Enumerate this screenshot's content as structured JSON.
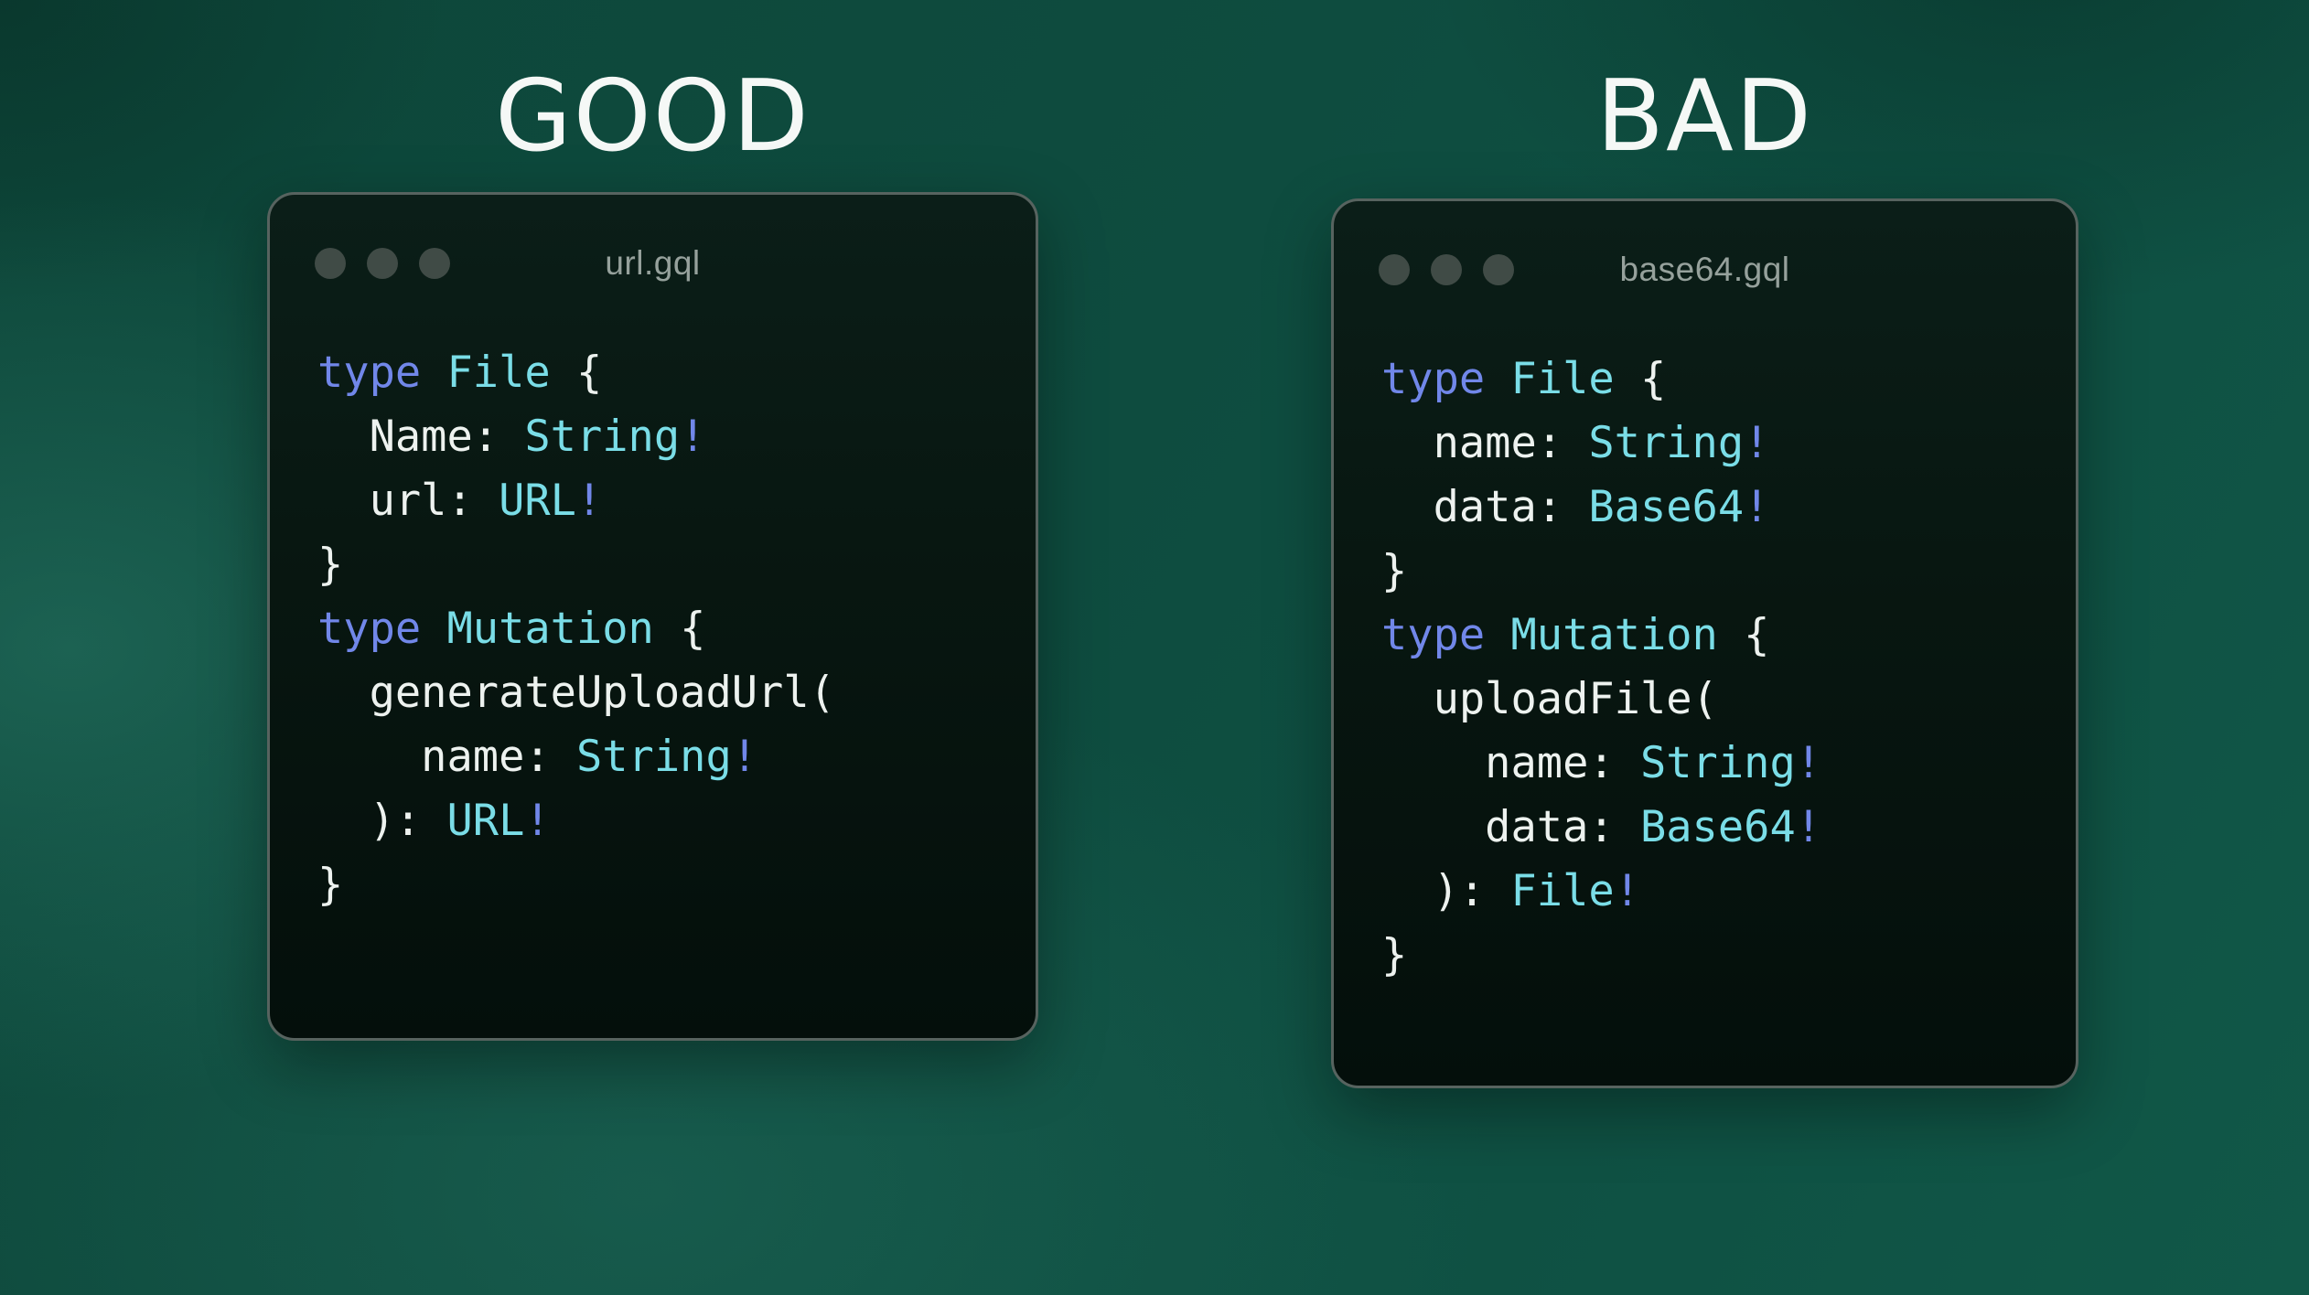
{
  "panels": [
    {
      "heading": "GOOD",
      "window_title": "url.gql",
      "window_controls": [
        "window-control-dot",
        "window-control-dot",
        "window-control-dot"
      ],
      "code": [
        [
          {
            "c": "kw",
            "t": "type"
          },
          {
            "c": "pl",
            "t": " "
          },
          {
            "c": "ty",
            "t": "File"
          },
          {
            "c": "pl",
            "t": " {"
          }
        ],
        [
          {
            "c": "pl",
            "t": "  Name: "
          },
          {
            "c": "ty",
            "t": "String"
          },
          {
            "c": "kw",
            "t": "!"
          }
        ],
        [
          {
            "c": "pl",
            "t": "  url: "
          },
          {
            "c": "ty",
            "t": "URL"
          },
          {
            "c": "kw",
            "t": "!"
          }
        ],
        [
          {
            "c": "pl",
            "t": "}"
          }
        ],
        [
          {
            "c": "kw",
            "t": "type"
          },
          {
            "c": "pl",
            "t": " "
          },
          {
            "c": "ty",
            "t": "Mutation"
          },
          {
            "c": "pl",
            "t": " {"
          }
        ],
        [
          {
            "c": "pl",
            "t": "  generateUploadUrl("
          }
        ],
        [
          {
            "c": "pl",
            "t": "    name: "
          },
          {
            "c": "ty",
            "t": "String"
          },
          {
            "c": "kw",
            "t": "!"
          }
        ],
        [
          {
            "c": "pl",
            "t": "  ): "
          },
          {
            "c": "ty",
            "t": "URL"
          },
          {
            "c": "kw",
            "t": "!"
          }
        ],
        [
          {
            "c": "pl",
            "t": "}"
          }
        ]
      ]
    },
    {
      "heading": "BAD",
      "window_title": "base64.gql",
      "window_controls": [
        "window-control-dot",
        "window-control-dot",
        "window-control-dot"
      ],
      "code": [
        [
          {
            "c": "kw",
            "t": "type"
          },
          {
            "c": "pl",
            "t": " "
          },
          {
            "c": "ty",
            "t": "File"
          },
          {
            "c": "pl",
            "t": " {"
          }
        ],
        [
          {
            "c": "pl",
            "t": "  name: "
          },
          {
            "c": "ty",
            "t": "String"
          },
          {
            "c": "kw",
            "t": "!"
          }
        ],
        [
          {
            "c": "pl",
            "t": "  data: "
          },
          {
            "c": "ty",
            "t": "Base64"
          },
          {
            "c": "kw",
            "t": "!"
          }
        ],
        [
          {
            "c": "pl",
            "t": "}"
          }
        ],
        [
          {
            "c": "kw",
            "t": "type"
          },
          {
            "c": "pl",
            "t": " "
          },
          {
            "c": "ty",
            "t": "Mutation"
          },
          {
            "c": "pl",
            "t": " {"
          }
        ],
        [
          {
            "c": "pl",
            "t": "  uploadFile("
          }
        ],
        [
          {
            "c": "pl",
            "t": "    name: "
          },
          {
            "c": "ty",
            "t": "String"
          },
          {
            "c": "kw",
            "t": "!"
          }
        ],
        [
          {
            "c": "pl",
            "t": "    data: "
          },
          {
            "c": "ty",
            "t": "Base64"
          },
          {
            "c": "kw",
            "t": "!"
          }
        ],
        [
          {
            "c": "pl",
            "t": "  ): "
          },
          {
            "c": "ty",
            "t": "File"
          },
          {
            "c": "kw",
            "t": "!"
          }
        ],
        [
          {
            "c": "pl",
            "t": "}"
          }
        ]
      ]
    }
  ],
  "colors": {
    "bg-base": "#0e4c3f",
    "kw": "#7187e9",
    "ty": "#7adde7",
    "pl": "#edf2ef",
    "title": "#96a19c",
    "dot": "#404b46",
    "win-border": "#57635f",
    "heading": "#f5f8f6"
  }
}
